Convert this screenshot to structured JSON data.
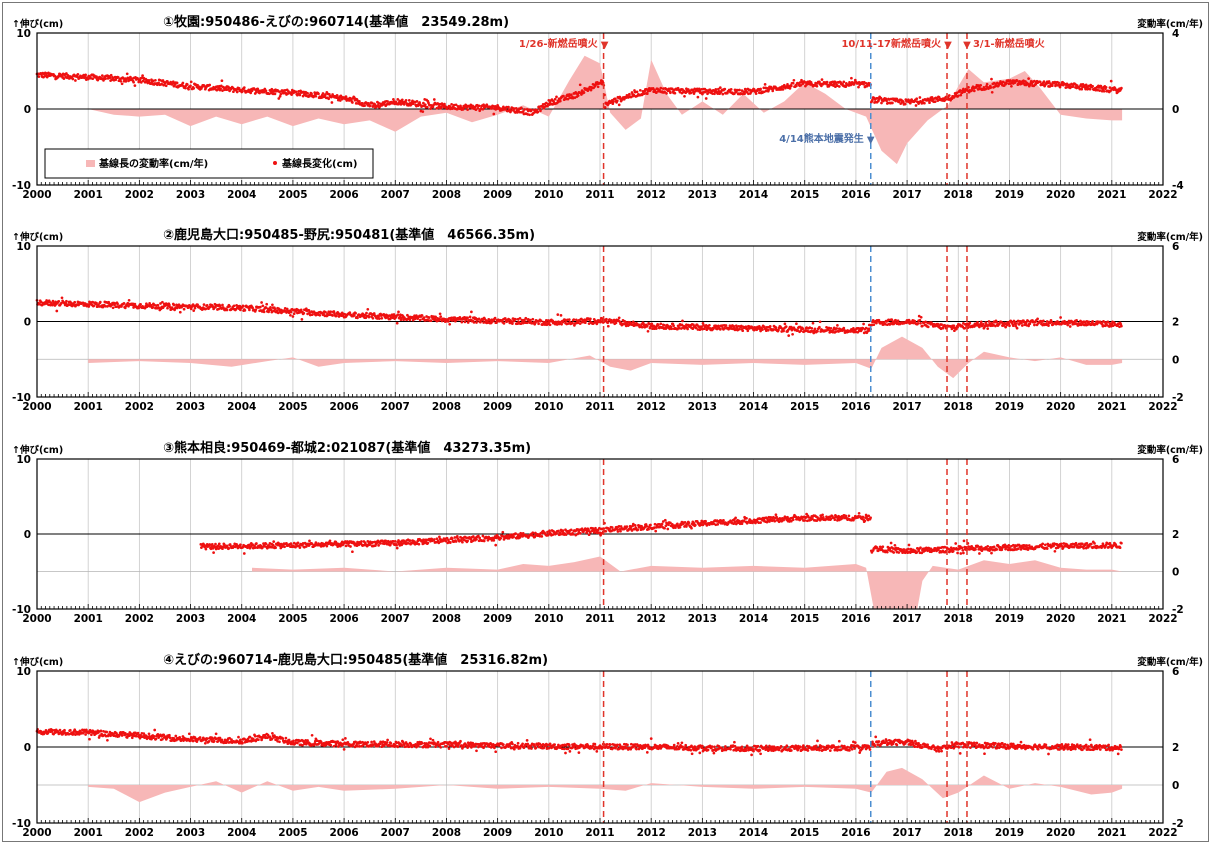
{
  "colors": {
    "dots": "#ee1111",
    "area": "#f7b7b7",
    "volcano_line": "#e0342a",
    "quake_line": "#4b8ed0",
    "quake_text": "#4b6fa8"
  },
  "legend": {
    "rate_label": "基線長の変動率(cm/年)",
    "change_label": "基線長変化(cm)"
  },
  "events": [
    {
      "id": "shinmoe-2011",
      "x": 2011.07,
      "style": "volcano",
      "label": "1/26-新燃岳噴火",
      "marker": "▼"
    },
    {
      "id": "kumamoto-2016",
      "x": 2016.29,
      "style": "quake",
      "label": "4/14熊本地震発生",
      "marker": "▼"
    },
    {
      "id": "shinmoe-2017",
      "x": 2017.78,
      "style": "volcano",
      "label": "10/11-17新燃岳噴火",
      "marker": "▼"
    },
    {
      "id": "shinmoe-2018",
      "x": 2018.17,
      "style": "volcano",
      "label": "3/1-新燃岳噴火",
      "marker": "▼"
    }
  ],
  "chart_data": [
    {
      "type": "scatter",
      "title": "①牧園:950486-えびの:960714(基準値　23549.28m)",
      "ylabel": "↑伸び(cm)",
      "ylabel2": "変動率(cm/年)",
      "xlim": [
        2000,
        2022
      ],
      "ylim": [
        -10,
        10
      ],
      "y2lim": [
        -4,
        4
      ],
      "y_ticks": [
        "10",
        "0",
        "-10"
      ],
      "y2_ticks": [
        "4",
        "0",
        "-4"
      ],
      "x_ticks": [
        "2000",
        "2001",
        "2002",
        "2003",
        "2004",
        "2005",
        "2006",
        "2007",
        "2008",
        "2009",
        "2010",
        "2011",
        "2012",
        "2013",
        "2014",
        "2015",
        "2016",
        "2017",
        "2018",
        "2019",
        "2020",
        "2021",
        "2022"
      ],
      "quake_line": true,
      "show_legend": true,
      "series": [
        {
          "name": "基線長変化(cm)",
          "kind": "points",
          "x": [
            2000.0,
            2001.0,
            2002.0,
            2003.0,
            2004.0,
            2005.0,
            2006.0,
            2006.6,
            2007.0,
            2008.0,
            2009.0,
            2009.7,
            2010.0,
            2010.5,
            2011.07,
            2011.1,
            2011.5,
            2012.0,
            2013.0,
            2014.0,
            2015.0,
            2016.29,
            2016.3,
            2017.0,
            2017.78,
            2018.17,
            2019.0,
            2020.0,
            2021.2
          ],
          "y": [
            4.5,
            4.2,
            3.8,
            3.0,
            2.5,
            2.2,
            1.4,
            0.4,
            1.0,
            0.3,
            0.2,
            -0.5,
            0.8,
            1.8,
            3.6,
            0.6,
            1.6,
            2.5,
            2.3,
            2.3,
            3.3,
            3.2,
            1.2,
            0.9,
            1.4,
            2.5,
            3.5,
            3.2,
            2.4
          ],
          "start": 2000.0,
          "end": 2021.25
        },
        {
          "name": "基線長の変動率(cm/年)",
          "kind": "area",
          "x": [
            2001.0,
            2001.5,
            2002.0,
            2002.5,
            2003.0,
            2003.5,
            2004.0,
            2004.5,
            2005.0,
            2005.5,
            2006.0,
            2006.5,
            2007.0,
            2007.5,
            2008.0,
            2008.5,
            2009.0,
            2009.5,
            2010.0,
            2010.4,
            2010.7,
            2011.0,
            2011.2,
            2011.5,
            2011.8,
            2012.0,
            2012.3,
            2012.6,
            2013.0,
            2013.4,
            2013.8,
            2014.2,
            2014.6,
            2015.0,
            2015.4,
            2015.8,
            2016.2,
            2016.5,
            2016.8,
            2017.0,
            2017.4,
            2017.8,
            2018.0,
            2018.2,
            2018.5,
            2019.0,
            2019.3,
            2019.6,
            2020.0,
            2020.5,
            2021.0,
            2021.2
          ],
          "y": [
            0.0,
            -0.3,
            -0.4,
            -0.3,
            -0.9,
            -0.4,
            -0.8,
            -0.4,
            -0.9,
            -0.5,
            -0.8,
            -0.6,
            -1.2,
            -0.4,
            -0.2,
            -0.7,
            -0.3,
            0.2,
            -0.4,
            1.5,
            2.8,
            2.4,
            -0.2,
            -1.1,
            -0.5,
            2.6,
            0.8,
            -0.3,
            0.4,
            -0.3,
            0.8,
            -0.2,
            0.4,
            1.4,
            0.8,
            0.0,
            -0.4,
            -2.2,
            -2.9,
            -1.8,
            -0.6,
            0.2,
            1.2,
            2.1,
            1.4,
            1.6,
            2.0,
            1.1,
            -0.3,
            -0.5,
            -0.6,
            -0.6
          ],
          "start": 2001.0,
          "end": 2021.25
        }
      ]
    },
    {
      "type": "scatter",
      "title": "②鹿児島大口:950485-野尻:950481(基準値　46566.35m)",
      "ylabel": "↑伸び(cm)",
      "ylabel2": "変動率(cm/年)",
      "xlim": [
        2000,
        2022
      ],
      "ylim": [
        -10,
        10
      ],
      "y2lim": [
        -2,
        6
      ],
      "y_ticks": [
        "10",
        "0",
        "-10"
      ],
      "y2_ticks": [
        "6",
        "2",
        "0",
        "-2"
      ],
      "x_ticks": [
        "2000",
        "2001",
        "2002",
        "2003",
        "2004",
        "2005",
        "2006",
        "2007",
        "2008",
        "2009",
        "2010",
        "2011",
        "2012",
        "2013",
        "2014",
        "2015",
        "2016",
        "2017",
        "2018",
        "2019",
        "2020",
        "2021",
        "2022"
      ],
      "quake_line": true,
      "show_legend": false,
      "series": [
        {
          "name": "基線長変化(cm)",
          "kind": "points",
          "x": [
            2000.0,
            2002.0,
            2004.0,
            2006.0,
            2008.0,
            2010.0,
            2011.07,
            2012.0,
            2014.0,
            2016.29,
            2016.3,
            2017.0,
            2017.8,
            2018.5,
            2020.0,
            2021.2
          ],
          "y": [
            2.5,
            2.1,
            1.8,
            0.9,
            0.3,
            -0.1,
            0.1,
            -0.6,
            -0.9,
            -1.2,
            -0.2,
            0.0,
            -0.8,
            -0.3,
            -0.1,
            -0.4
          ],
          "start": 2000.0,
          "end": 2021.25
        },
        {
          "name": "基線長の変動率(cm/年)",
          "kind": "area",
          "x": [
            2001.0,
            2002.0,
            2003.0,
            2003.8,
            2004.5,
            2005.0,
            2005.5,
            2006.0,
            2007.0,
            2008.0,
            2009.0,
            2010.0,
            2010.8,
            2011.2,
            2011.6,
            2012.0,
            2013.0,
            2014.0,
            2015.0,
            2016.0,
            2016.3,
            2016.5,
            2016.9,
            2017.3,
            2017.6,
            2017.9,
            2018.2,
            2018.5,
            2019.0,
            2019.5,
            2020.0,
            2020.5,
            2021.0,
            2021.2
          ],
          "y": [
            -0.2,
            -0.1,
            -0.2,
            -0.4,
            -0.1,
            0.1,
            -0.4,
            -0.2,
            -0.1,
            -0.2,
            -0.1,
            -0.2,
            0.2,
            -0.4,
            -0.6,
            -0.2,
            -0.3,
            -0.2,
            -0.3,
            -0.2,
            -0.5,
            0.6,
            1.2,
            0.6,
            -0.4,
            -1.0,
            -0.2,
            0.4,
            0.1,
            -0.1,
            0.1,
            -0.3,
            -0.3,
            -0.2
          ],
          "start": 2001.0,
          "end": 2021.25
        }
      ]
    },
    {
      "type": "scatter",
      "title": "③熊本相良:950469-都城2:021087(基準値　43273.35m)",
      "ylabel": "↑伸び(cm)",
      "ylabel2": "変動率(cm/年)",
      "xlim": [
        2000,
        2022
      ],
      "ylim": [
        -10,
        10
      ],
      "y2lim": [
        -2,
        6
      ],
      "y_ticks": [
        "10",
        "0",
        "-10"
      ],
      "y2_ticks": [
        "6",
        "2",
        "0",
        "-2"
      ],
      "x_ticks": [
        "2000",
        "2001",
        "2002",
        "2003",
        "2004",
        "2005",
        "2006",
        "2007",
        "2008",
        "2009",
        "2010",
        "2011",
        "2012",
        "2013",
        "2014",
        "2015",
        "2016",
        "2017",
        "2018",
        "2019",
        "2020",
        "2021",
        "2022"
      ],
      "quake_line": false,
      "show_legend": false,
      "series": [
        {
          "name": "基線長変化(cm)",
          "kind": "points",
          "x": [
            2003.2,
            2005.0,
            2007.0,
            2009.0,
            2010.0,
            2011.0,
            2012.0,
            2013.0,
            2014.0,
            2015.0,
            2016.29,
            2016.3,
            2017.0,
            2018.0,
            2019.0,
            2020.0,
            2021.2
          ],
          "y": [
            -1.7,
            -1.5,
            -1.2,
            -0.5,
            0.1,
            0.5,
            1.0,
            1.4,
            1.8,
            2.1,
            2.2,
            -1.9,
            -2.3,
            -2.0,
            -1.8,
            -1.6,
            -1.5
          ],
          "start": 2003.2,
          "end": 2021.25
        },
        {
          "name": "基線長の変動率(cm/年)",
          "kind": "area",
          "x": [
            2004.2,
            2005.0,
            2006.0,
            2007.0,
            2008.0,
            2009.0,
            2009.5,
            2010.0,
            2010.5,
            2011.0,
            2011.4,
            2012.0,
            2013.0,
            2014.0,
            2015.0,
            2016.0,
            2016.2,
            2016.35,
            2016.8,
            2017.2,
            2017.3,
            2017.5,
            2018.0,
            2018.5,
            2019.0,
            2019.5,
            2020.0,
            2020.5,
            2021.0,
            2021.2
          ],
          "y": [
            0.2,
            0.1,
            0.2,
            0.0,
            0.2,
            0.1,
            0.4,
            0.3,
            0.5,
            0.8,
            0.0,
            0.3,
            0.2,
            0.3,
            0.2,
            0.4,
            0.2,
            -2.0,
            -2.0,
            -2.0,
            -0.5,
            0.3,
            0.1,
            0.6,
            0.4,
            0.6,
            0.2,
            0.1,
            0.1,
            0.0
          ],
          "start": 2004.2,
          "end": 2021.25
        }
      ]
    },
    {
      "type": "scatter",
      "title": "④えびの:960714-鹿児島大口:950485(基準値　25316.82m)",
      "ylabel": "↑伸び(cm)",
      "ylabel2": "変動率(cm/年)",
      "xlim": [
        2000,
        2022
      ],
      "ylim": [
        -10,
        10
      ],
      "y2lim": [
        -2,
        6
      ],
      "y_ticks": [
        "10",
        "0",
        "-10"
      ],
      "y2_ticks": [
        "6",
        "2",
        "0",
        "-2"
      ],
      "x_ticks": [
        "2000",
        "2001",
        "2002",
        "2003",
        "2004",
        "2005",
        "2006",
        "2007",
        "2008",
        "2009",
        "2010",
        "2011",
        "2012",
        "2013",
        "2014",
        "2015",
        "2016",
        "2017",
        "2018",
        "2019",
        "2020",
        "2021",
        "2022"
      ],
      "quake_line": true,
      "show_legend": false,
      "series": [
        {
          "name": "基線長変化(cm)",
          "kind": "points",
          "x": [
            2000.0,
            2001.0,
            2002.0,
            2003.0,
            2004.0,
            2004.5,
            2005.0,
            2006.0,
            2008.0,
            2010.0,
            2012.0,
            2014.0,
            2016.29,
            2016.3,
            2017.0,
            2017.6,
            2018.0,
            2019.0,
            2020.0,
            2021.2
          ],
          "y": [
            2.1,
            1.9,
            1.5,
            1.0,
            0.8,
            1.4,
            0.6,
            0.4,
            0.3,
            0.1,
            0.0,
            -0.2,
            -0.1,
            0.4,
            0.7,
            -0.3,
            0.3,
            0.1,
            0.0,
            -0.1
          ],
          "start": 2000.0,
          "end": 2021.25
        },
        {
          "name": "基線長の変動率(cm/年)",
          "kind": "area",
          "x": [
            2001.0,
            2001.5,
            2002.0,
            2002.5,
            2003.0,
            2003.5,
            2004.0,
            2004.5,
            2005.0,
            2005.5,
            2006.0,
            2007.0,
            2008.0,
            2009.0,
            2010.0,
            2011.0,
            2011.5,
            2012.0,
            2013.0,
            2014.0,
            2015.0,
            2016.0,
            2016.3,
            2016.6,
            2016.9,
            2017.3,
            2017.7,
            2018.0,
            2018.5,
            2019.0,
            2019.5,
            2020.0,
            2020.6,
            2021.0,
            2021.2
          ],
          "y": [
            -0.1,
            -0.2,
            -0.9,
            -0.4,
            -0.1,
            0.2,
            -0.4,
            0.2,
            -0.3,
            -0.1,
            -0.3,
            -0.2,
            0.0,
            -0.2,
            -0.1,
            -0.2,
            -0.3,
            0.1,
            -0.1,
            -0.2,
            -0.1,
            -0.2,
            -0.4,
            0.7,
            0.9,
            0.3,
            -0.7,
            -0.4,
            0.5,
            -0.2,
            0.1,
            -0.1,
            -0.5,
            -0.4,
            -0.2
          ],
          "start": 2001.0,
          "end": 2021.25
        }
      ]
    }
  ]
}
